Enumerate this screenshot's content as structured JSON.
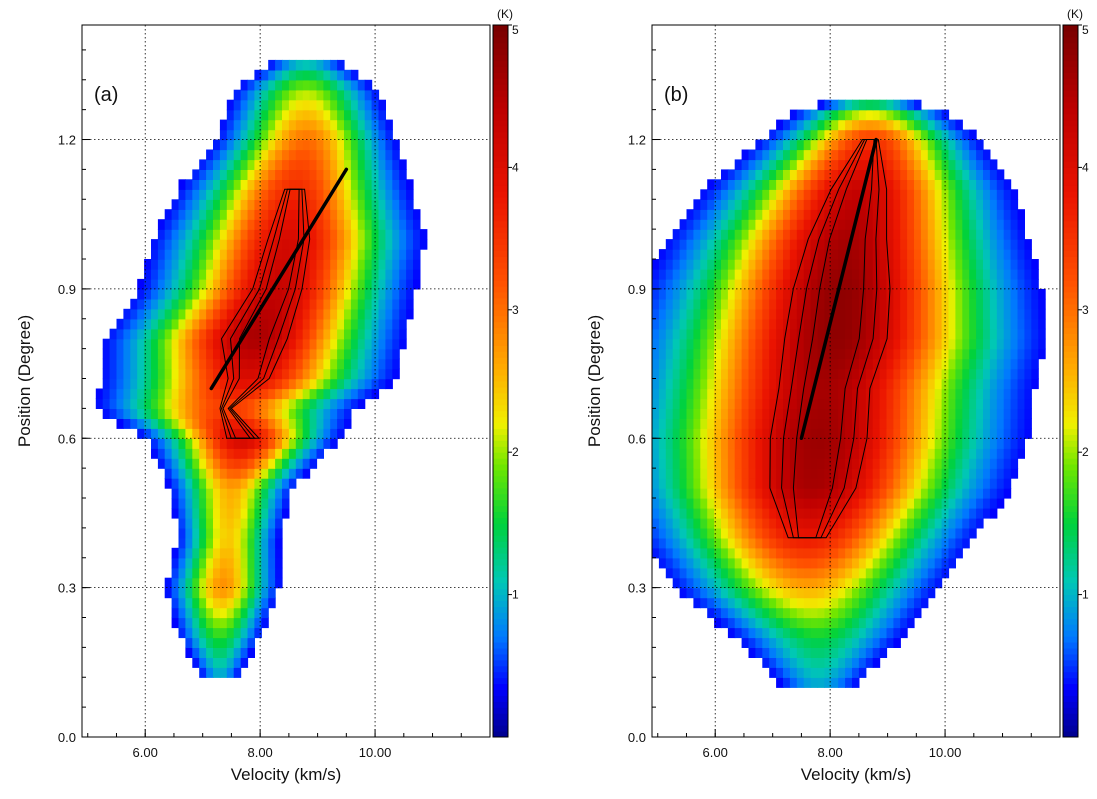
{
  "chart_data": [
    {
      "type": "heatmap",
      "panel_label": "(a)",
      "xlabel": "Velocity (km/s)",
      "ylabel": "Position (Degree)",
      "xlim": [
        4.9,
        12.0
      ],
      "ylim": [
        0.0,
        1.43
      ],
      "xticks": [
        6.0,
        8.0,
        10.0
      ],
      "xtick_labels": [
        "6.00",
        "8.00",
        "10.00"
      ],
      "yticks": [
        0.0,
        0.3,
        0.6,
        0.9,
        1.2
      ],
      "ytick_labels": [
        "0.0",
        "0.3",
        "0.6",
        "0.9",
        "1.2"
      ],
      "grid": true,
      "colorbar": {
        "unit_label": "(K)",
        "range": [
          0,
          5
        ],
        "ticks": [
          1,
          2,
          3,
          4,
          5
        ],
        "tick_labels": [
          "1",
          "2",
          "3",
          "4",
          "5"
        ]
      },
      "emission_ridge": [
        {
          "y": 0.12,
          "v": 7.3,
          "hw": 0.25,
          "amp": 0.9
        },
        {
          "y": 0.2,
          "v": 7.3,
          "hw": 0.45,
          "amp": 1.6
        },
        {
          "y": 0.3,
          "v": 7.35,
          "hw": 0.55,
          "amp": 2.8
        },
        {
          "y": 0.4,
          "v": 7.45,
          "hw": 0.5,
          "amp": 2.4
        },
        {
          "y": 0.5,
          "v": 7.5,
          "hw": 0.6,
          "amp": 2.6
        },
        {
          "y": 0.6,
          "v": 7.7,
          "hw": 0.85,
          "amp": 4.2
        },
        {
          "y": 0.66,
          "v": 7.4,
          "hw": 1.2,
          "amp": 3.3
        },
        {
          "y": 0.72,
          "v": 7.8,
          "hw": 1.3,
          "amp": 4.0
        },
        {
          "y": 0.8,
          "v": 7.9,
          "hw": 1.3,
          "amp": 4.6
        },
        {
          "y": 0.9,
          "v": 8.3,
          "hw": 1.2,
          "amp": 4.3
        },
        {
          "y": 1.0,
          "v": 8.5,
          "hw": 1.2,
          "amp": 4.1
        },
        {
          "y": 1.1,
          "v": 8.6,
          "hw": 1.05,
          "amp": 3.6
        },
        {
          "y": 1.2,
          "v": 8.8,
          "hw": 0.85,
          "amp": 3.0
        },
        {
          "y": 1.3,
          "v": 8.8,
          "hw": 0.75,
          "amp": 2.0
        },
        {
          "y": 1.36,
          "v": 8.8,
          "hw": 0.45,
          "amp": 0.9
        }
      ],
      "fit_line": {
        "start": {
          "v": 7.15,
          "y": 0.7
        },
        "end": {
          "v": 9.5,
          "y": 1.14
        }
      }
    },
    {
      "type": "heatmap",
      "panel_label": "(b)",
      "xlabel": "Velocity (km/s)",
      "ylabel": "Position (Degree)",
      "xlim": [
        4.9,
        12.0
      ],
      "ylim": [
        0.0,
        1.43
      ],
      "xticks": [
        6.0,
        8.0,
        10.0
      ],
      "xtick_labels": [
        "6.00",
        "8.00",
        "10.00"
      ],
      "yticks": [
        0.0,
        0.3,
        0.6,
        0.9,
        1.2
      ],
      "ytick_labels": [
        "0.0",
        "0.3",
        "0.6",
        "0.9",
        "1.2"
      ],
      "grid": true,
      "colorbar": {
        "unit_label": "(K)",
        "range": [
          0,
          5
        ],
        "ticks": [
          1,
          2,
          3,
          4,
          5
        ],
        "tick_labels": [
          "1",
          "2",
          "3",
          "4",
          "5"
        ]
      },
      "emission_ridge": [
        {
          "y": 0.1,
          "v": 7.8,
          "hw": 0.5,
          "amp": 0.9
        },
        {
          "y": 0.2,
          "v": 7.8,
          "hw": 0.95,
          "amp": 1.5
        },
        {
          "y": 0.3,
          "v": 7.6,
          "hw": 1.3,
          "amp": 2.6
        },
        {
          "y": 0.4,
          "v": 7.6,
          "hw": 1.5,
          "amp": 3.8
        },
        {
          "y": 0.5,
          "v": 7.7,
          "hw": 1.7,
          "amp": 4.6
        },
        {
          "y": 0.6,
          "v": 7.8,
          "hw": 1.8,
          "amp": 4.7
        },
        {
          "y": 0.7,
          "v": 7.9,
          "hw": 1.8,
          "amp": 4.6
        },
        {
          "y": 0.8,
          "v": 8.1,
          "hw": 1.8,
          "amp": 4.8
        },
        {
          "y": 0.9,
          "v": 8.2,
          "hw": 1.7,
          "amp": 4.8
        },
        {
          "y": 1.0,
          "v": 8.3,
          "hw": 1.55,
          "amp": 4.6
        },
        {
          "y": 1.1,
          "v": 8.5,
          "hw": 1.35,
          "amp": 4.3
        },
        {
          "y": 1.2,
          "v": 8.7,
          "hw": 1.0,
          "amp": 3.5
        },
        {
          "y": 1.25,
          "v": 8.7,
          "hw": 0.8,
          "amp": 2.2
        },
        {
          "y": 1.28,
          "v": 8.7,
          "hw": 0.5,
          "amp": 1.0
        }
      ],
      "fit_line": {
        "start": {
          "v": 7.5,
          "y": 0.6
        },
        "end": {
          "v": 8.8,
          "y": 1.2
        }
      }
    }
  ]
}
